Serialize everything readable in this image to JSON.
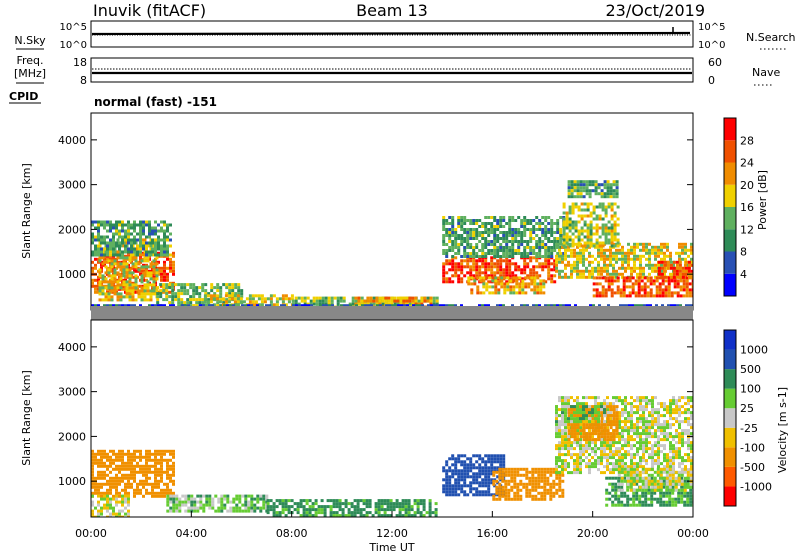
{
  "header": {
    "station": "Inuvik (fitACF)",
    "beam": "Beam 13",
    "date": "23/Oct/2019"
  },
  "nsky_panel": {
    "left_label": "N.Sky",
    "left_ticks": [
      "10^5",
      "10^0"
    ],
    "right_ticks": [
      "10^5",
      "10^0"
    ],
    "right_label": "N.Search"
  },
  "freq_panel": {
    "left_label_line1": "Freq.",
    "left_label_line2": "[MHz]",
    "left_ticks": [
      "18",
      "8"
    ],
    "right_ticks": [
      "60",
      "0"
    ],
    "right_label": "Nave"
  },
  "cpid": {
    "label": "CPID",
    "value": "normal (fast) -151"
  },
  "colors": {
    "power": [
      "#0000ff",
      "#2850b4",
      "#2e8b57",
      "#5fb05f",
      "#f0d000",
      "#f08c00",
      "#f05000",
      "#ff0000"
    ],
    "velocity": [
      "#ff0000",
      "#ff5a00",
      "#f09000",
      "#f0c000",
      "#c8c8c8",
      "#66cc33",
      "#2e8b57",
      "#2050b0",
      "#1030c8"
    ]
  },
  "chart_data": [
    {
      "type": "heatmap",
      "name": "power",
      "ylabel": "Slant Range [km]",
      "yticks": [
        "1000",
        "2000",
        "3000",
        "4000"
      ],
      "ylim": [
        200,
        4600
      ],
      "xlim": [
        0,
        24
      ],
      "colorbar_label": "Power [dB]",
      "colorbar_ticks": [
        "4",
        "8",
        "12",
        "16",
        "20",
        "24",
        "28"
      ],
      "colorbar_range": [
        0,
        32
      ],
      "regions": [
        {
          "t0": 0.0,
          "t1": 3.3,
          "r0": 600,
          "r1": 1500,
          "value": 26
        },
        {
          "t0": 0.3,
          "t1": 2.6,
          "r0": 400,
          "r1": 1800,
          "value": 18
        },
        {
          "t0": 0.0,
          "t1": 3.2,
          "r0": 1400,
          "r1": 2200,
          "value": 12
        },
        {
          "t0": 2.6,
          "t1": 6.0,
          "r0": 300,
          "r1": 800,
          "value": 14
        },
        {
          "t0": 4.5,
          "t1": 8.0,
          "r0": 250,
          "r1": 550,
          "value": 18
        },
        {
          "t0": 8.0,
          "t1": 13.8,
          "r0": 220,
          "r1": 500,
          "value": 14
        },
        {
          "t0": 10.5,
          "t1": 13.5,
          "r0": 250,
          "r1": 500,
          "value": 22
        },
        {
          "t0": 14.0,
          "t1": 18.5,
          "r0": 850,
          "r1": 1400,
          "value": 27
        },
        {
          "t0": 14.0,
          "t1": 18.8,
          "r0": 1400,
          "r1": 2300,
          "value": 12
        },
        {
          "t0": 15.0,
          "t1": 18.0,
          "r0": 600,
          "r1": 950,
          "value": 20
        },
        {
          "t0": 18.5,
          "t1": 24.0,
          "r0": 900,
          "r1": 1700,
          "value": 18
        },
        {
          "t0": 18.8,
          "t1": 21.0,
          "r0": 1600,
          "r1": 2600,
          "value": 16
        },
        {
          "t0": 19.0,
          "t1": 21.0,
          "r0": 2700,
          "r1": 3100,
          "value": 12
        },
        {
          "t0": 20.0,
          "t1": 24.0,
          "r0": 500,
          "r1": 950,
          "value": 26
        },
        {
          "t0": 22.6,
          "t1": 24.0,
          "r0": 900,
          "r1": 1300,
          "value": 26
        },
        {
          "t0": 0.0,
          "t1": 24.0,
          "r0": 200,
          "r1": 330,
          "value": 6
        }
      ]
    },
    {
      "type": "heatmap",
      "name": "velocity",
      "ylabel": "Slant Range [km]",
      "yticks": [
        "1000",
        "2000",
        "3000",
        "4000"
      ],
      "ylim": [
        200,
        4600
      ],
      "xlim": [
        0,
        24
      ],
      "xticks": [
        "00:00",
        "04:00",
        "08:00",
        "12:00",
        "16:00",
        "20:00",
        "00:00"
      ],
      "xlabel": "Time UT",
      "colorbar_label": "Velocity [m s-1]",
      "colorbar_ticks": [
        "-1000",
        "-500",
        "-100",
        "-25",
        "25",
        "100",
        "500",
        "1000"
      ],
      "regions": [
        {
          "t0": 0.0,
          "t1": 3.3,
          "r0": 650,
          "r1": 1700,
          "value": -300
        },
        {
          "t0": 0.0,
          "t1": 1.5,
          "r0": 200,
          "r1": 700,
          "value": 0
        },
        {
          "t0": 3.0,
          "t1": 7.0,
          "r0": 300,
          "r1": 700,
          "value": 60
        },
        {
          "t0": 7.0,
          "t1": 13.8,
          "r0": 220,
          "r1": 600,
          "value": 150
        },
        {
          "t0": 14.0,
          "t1": 16.5,
          "r0": 700,
          "r1": 1600,
          "value": 700
        },
        {
          "t0": 16.0,
          "t1": 18.8,
          "r0": 600,
          "r1": 1300,
          "value": -400
        },
        {
          "t0": 18.5,
          "t1": 24.0,
          "r0": 1200,
          "r1": 2900,
          "value": 0
        },
        {
          "t0": 19.0,
          "t1": 21.0,
          "r0": 1900,
          "r1": 2700,
          "value": -300
        },
        {
          "t0": 20.5,
          "t1": 24.0,
          "r0": 450,
          "r1": 1100,
          "value": 120
        },
        {
          "t0": 21.0,
          "t1": 24.0,
          "r0": 800,
          "r1": 1300,
          "value": 0
        },
        {
          "t0": 18.5,
          "t1": 20.5,
          "r0": 2300,
          "r1": 2700,
          "value": 60
        }
      ]
    }
  ]
}
